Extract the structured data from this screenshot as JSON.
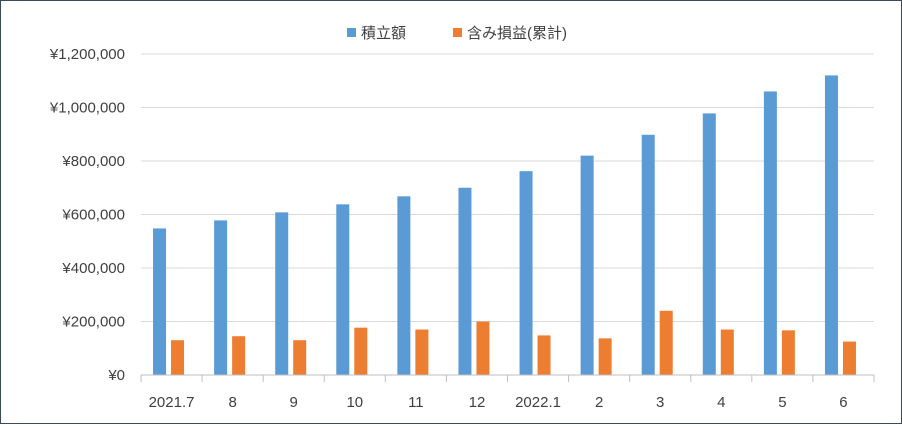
{
  "chart_data": {
    "type": "bar",
    "title": "",
    "xlabel": "",
    "ylabel": "",
    "categories": [
      "2021.7",
      "8",
      "9",
      "10",
      "11",
      "12",
      "2022.1",
      "2",
      "3",
      "4",
      "5",
      "6"
    ],
    "series": [
      {
        "name": "積立額",
        "color": "#5b9bd5",
        "values": [
          548000,
          578000,
          608000,
          638000,
          668000,
          700000,
          762000,
          820000,
          898000,
          978000,
          1060000,
          1120000
        ]
      },
      {
        "name": "含み損益(累計)",
        "color": "#ed7d31",
        "values": [
          130000,
          145000,
          130000,
          177000,
          170000,
          200000,
          148000,
          137000,
          240000,
          170000,
          167000,
          125000
        ]
      }
    ],
    "ylim": [
      0,
      1200000
    ],
    "yticks": [
      0,
      200000,
      400000,
      600000,
      800000,
      1000000,
      1200000
    ],
    "ytick_labels": [
      "¥0",
      "¥200,000",
      "¥400,000",
      "¥600,000",
      "¥800,000",
      "¥1,000,000",
      "¥1,200,000"
    ],
    "grid": true,
    "legend_position": "top-center"
  }
}
